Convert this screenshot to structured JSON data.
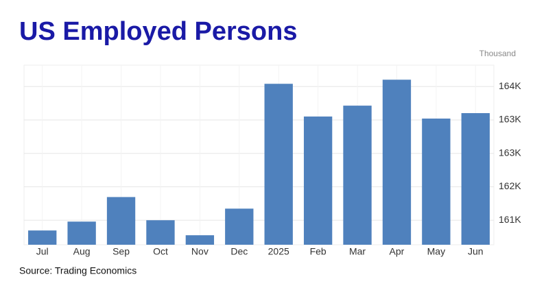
{
  "chart_data": {
    "type": "bar",
    "title": "US Employed Persons",
    "y_label": "Thousand",
    "source": "Source: Trading Economics",
    "categories": [
      "Jul",
      "Aug",
      "Sep",
      "Oct",
      "Nov",
      "Dec",
      "2025",
      "Feb",
      "Mar",
      "Apr",
      "May",
      "Jun"
    ],
    "values": [
      160770,
      160969,
      161520,
      161000,
      160663,
      161260,
      164061,
      163327,
      163571,
      164153,
      163281,
      163403
    ],
    "color": "#4f81bd",
    "ylim": [
      160450,
      164480
    ],
    "yticks": [
      {
        "value": 161000,
        "label": "161K"
      },
      {
        "value": 161750,
        "label": "162K"
      },
      {
        "value": 162500,
        "label": "163K"
      },
      {
        "value": 163250,
        "label": "163K"
      },
      {
        "value": 164000,
        "label": "164K"
      }
    ],
    "grid": true
  }
}
